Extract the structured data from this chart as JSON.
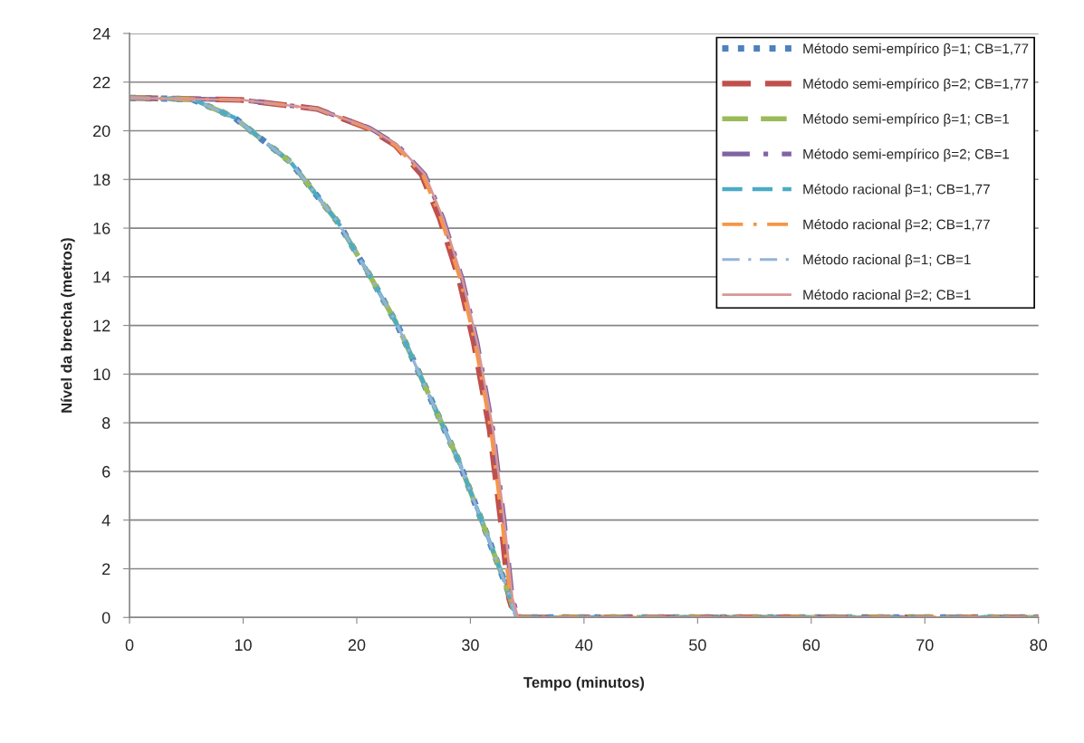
{
  "chart_data": {
    "type": "line",
    "xlabel": "Tempo (minutos)",
    "ylabel": "Nível da brecha (metros)",
    "xlim": [
      0,
      80
    ],
    "xticks": [
      0,
      10,
      20,
      30,
      40,
      50,
      60,
      70,
      80
    ],
    "ylim": [
      0,
      24
    ],
    "yticks": [
      0,
      2,
      4,
      6,
      8,
      10,
      12,
      14,
      16,
      18,
      20,
      22,
      24
    ],
    "grid": "y",
    "legend": "top right",
    "marker": "none",
    "series": [
      {
        "name": "Método semi-empírico β=1; CB=1,77",
        "color": "#4f81bd",
        "line_style": "dotted",
        "x": [
          0,
          5.5,
          9.2,
          14.2,
          18.4,
          21.2,
          23.6,
          26.3,
          29.0,
          31.3,
          33.3,
          34.0,
          80
        ],
        "values": [
          21.35,
          21.3,
          20.55,
          18.7,
          16.2,
          14.0,
          12.0,
          9.2,
          6.4,
          3.6,
          1.1,
          0,
          0
        ]
      },
      {
        "name": "Método semi-empírico β=2; CB=1,77",
        "color": "#c0504d",
        "line_style": "dashed",
        "x": [
          0,
          9.8,
          16.5,
          21.0,
          23.4,
          25.7,
          27.3,
          29.0,
          30.3,
          31.7,
          32.7,
          33.4,
          33.9,
          80
        ],
        "values": [
          21.35,
          21.27,
          20.9,
          20.1,
          19.4,
          18.2,
          16.4,
          13.9,
          11.3,
          7.7,
          3.9,
          0.8,
          0,
          0
        ]
      },
      {
        "name": "Método semi-empírico β=1; CB=1",
        "color": "#9bbb59",
        "line_style": "dashed",
        "x": [
          0,
          5.5,
          9.2,
          14.2,
          18.4,
          21.2,
          23.6,
          26.3,
          29.0,
          31.3,
          33.3,
          34.0,
          80
        ],
        "values": [
          21.35,
          21.3,
          20.55,
          18.7,
          16.2,
          14.0,
          12.0,
          9.2,
          6.4,
          3.6,
          1.1,
          0,
          0
        ]
      },
      {
        "name": "Método semi-empírico β=2; CB=1",
        "color": "#8064a2",
        "line_style": "dashdot",
        "x": [
          0,
          9.8,
          16.5,
          21.2,
          23.6,
          26.0,
          27.6,
          29.3,
          30.6,
          32.0,
          33.0,
          33.7,
          34.2,
          80
        ],
        "values": [
          21.35,
          21.27,
          20.9,
          20.1,
          19.4,
          18.2,
          16.4,
          13.9,
          11.3,
          7.7,
          3.9,
          0.8,
          0,
          0
        ]
      },
      {
        "name": "Método racional β=1; CB=1,77",
        "color": "#4bacc6",
        "line_style": "dashed",
        "x": [
          0,
          5.5,
          9.2,
          14.2,
          18.4,
          21.2,
          23.6,
          26.3,
          29.0,
          31.3,
          33.3,
          34.0,
          80
        ],
        "values": [
          21.35,
          21.3,
          20.55,
          18.7,
          16.2,
          14.0,
          12.0,
          9.2,
          6.4,
          3.6,
          1.1,
          0,
          0
        ]
      },
      {
        "name": "Método racional β=2; CB=1,77",
        "color": "#f79646",
        "line_style": "dashdot",
        "x": [
          0,
          9.8,
          16.5,
          21.0,
          23.4,
          25.8,
          27.4,
          29.1,
          30.4,
          31.8,
          32.8,
          33.5,
          34.0,
          80
        ],
        "values": [
          21.35,
          21.27,
          20.9,
          20.1,
          19.4,
          18.2,
          16.4,
          13.9,
          11.3,
          7.7,
          3.9,
          0.8,
          0,
          0
        ]
      },
      {
        "name": "Método racional β=1; CB=1",
        "color": "#95b3d7",
        "line_style": "dashdot",
        "x": [
          0,
          5.5,
          9.2,
          14.2,
          18.4,
          21.2,
          23.6,
          26.3,
          29.0,
          31.3,
          33.3,
          34.0,
          80
        ],
        "values": [
          21.35,
          21.3,
          20.55,
          18.7,
          16.2,
          14.0,
          12.0,
          9.2,
          6.4,
          3.6,
          1.1,
          0,
          0
        ]
      },
      {
        "name": "Método racional β=2; CB=1",
        "color": "#d99694",
        "line_style": "solid",
        "x": [
          0,
          9.8,
          16.5,
          21.2,
          23.6,
          26.0,
          27.6,
          29.3,
          30.6,
          32.0,
          33.0,
          33.7,
          34.2,
          80
        ],
        "values": [
          21.35,
          21.27,
          20.9,
          20.1,
          19.4,
          18.2,
          16.4,
          13.9,
          11.3,
          7.7,
          3.9,
          0.8,
          0,
          0
        ]
      }
    ]
  }
}
